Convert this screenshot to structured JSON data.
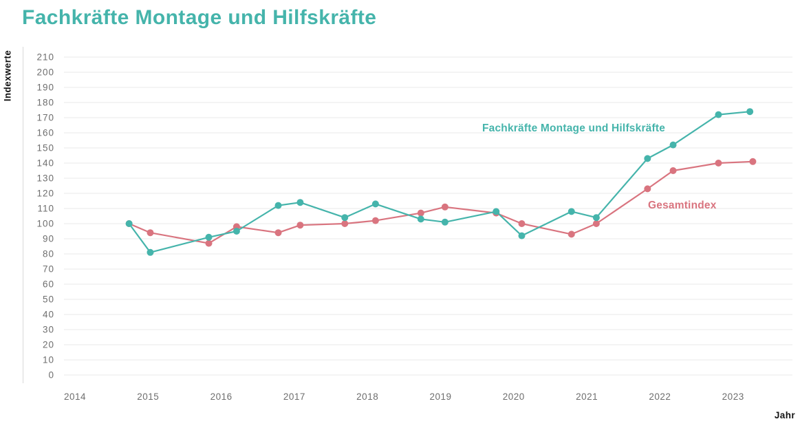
{
  "header": {
    "title": "Fachkräfte Montage und Hilfskräfte"
  },
  "colors": {
    "teal": "#45b4ab",
    "red": "#d9747f",
    "grid": "#eaeaea",
    "axis_line": "#d8d8d8",
    "tick_text": "#6e6e6e",
    "axis_title_text": "#141414",
    "background": "#ffffff"
  },
  "chart_data": {
    "type": "line",
    "title": "Fachkräfte Montage und Hilfskräfte",
    "xlabel": "Jahr",
    "ylabel": "Indexwerte",
    "xlim": [
      2013.9,
      2023.9
    ],
    "ylim": [
      0,
      210
    ],
    "ytick_step": 10,
    "grid": "horizontal",
    "legend_position": "inline-annotations",
    "xticks": [
      "2014",
      "2015",
      "2016",
      "2017",
      "2018",
      "2019",
      "2020",
      "2021",
      "2022",
      "2023"
    ],
    "yticks": [
      210,
      200,
      190,
      180,
      170,
      160,
      150,
      140,
      130,
      120,
      110,
      100,
      90,
      80,
      70,
      60,
      50,
      40,
      30,
      20,
      10,
      0
    ],
    "x_note": "x-Werte als Dezimaljahre von den Punktpositionen abgelesen (zwei Erhebungen pro Jahr)",
    "series": [
      {
        "id": "fachkraefte",
        "name": "Fachkräfte Montage und Hilfskräfte",
        "color": "#45b4ab",
        "x": [
          2014.74,
          2015.03,
          2015.83,
          2016.21,
          2016.78,
          2017.08,
          2017.69,
          2018.11,
          2018.73,
          2019.06,
          2019.76,
          2020.11,
          2020.79,
          2021.13,
          2021.83,
          2022.18,
          2022.8,
          2023.23
        ],
        "values": [
          100,
          81,
          91,
          95,
          112,
          114,
          104,
          113,
          103,
          101,
          108,
          92,
          108,
          104,
          143,
          152,
          172,
          174
        ]
      },
      {
        "id": "gesamtindex",
        "name": "Gesamtindex",
        "color": "#d9747f",
        "x": [
          2014.74,
          2015.03,
          2015.83,
          2016.21,
          2016.78,
          2017.08,
          2017.69,
          2018.11,
          2018.73,
          2019.06,
          2019.76,
          2020.11,
          2020.79,
          2021.13,
          2021.83,
          2022.18,
          2022.8,
          2023.27
        ],
        "values": [
          100,
          94,
          87,
          98,
          94,
          99,
          100,
          102,
          107,
          111,
          107,
          100,
          93,
          100,
          123,
          135,
          140,
          141
        ]
      }
    ]
  }
}
